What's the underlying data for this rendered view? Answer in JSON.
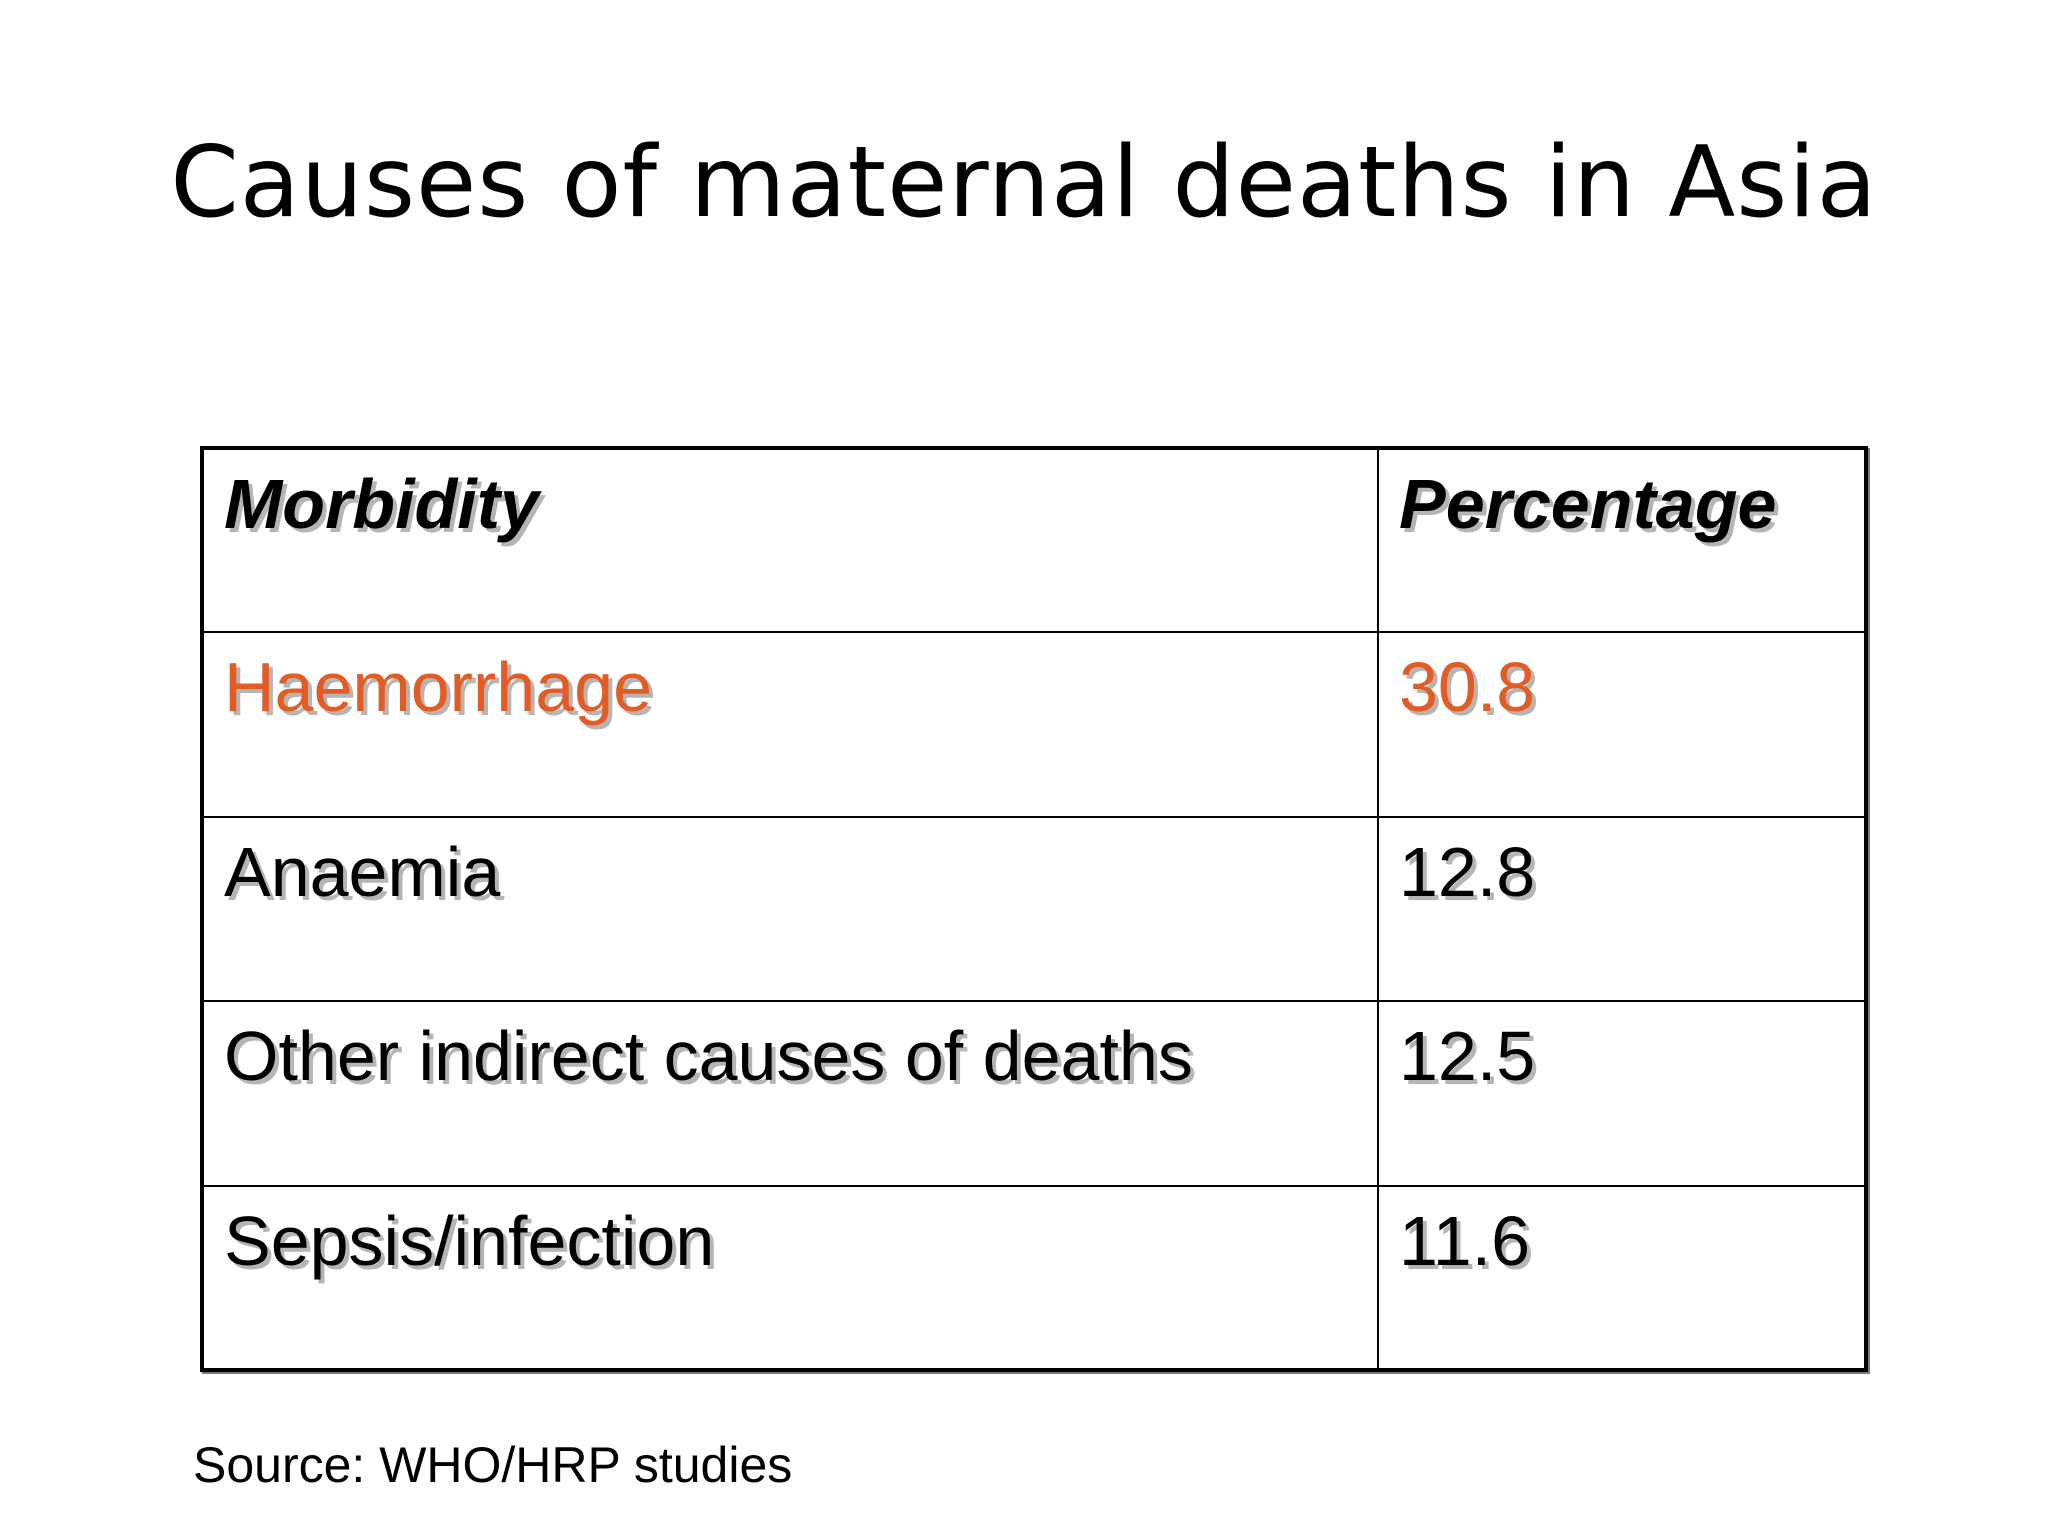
{
  "slide": {
    "title": "Causes of maternal deaths in Asia",
    "source": "Source: WHO/HRP studies"
  },
  "table": {
    "headers": [
      "Morbidity",
      "Percentage"
    ],
    "rows": [
      {
        "morbidity": "Haemorrhage",
        "percentage": "30.8",
        "highlighted": true
      },
      {
        "morbidity": "Anaemia",
        "percentage": "12.8",
        "highlighted": false
      },
      {
        "morbidity": "Other indirect causes of deaths",
        "percentage": "12.5",
        "highlighted": false
      },
      {
        "morbidity": "Sepsis/infection",
        "percentage": "11.6",
        "highlighted": false
      }
    ]
  },
  "colors": {
    "highlight": "#e35c24",
    "text": "#000000",
    "background": "#ffffff"
  }
}
